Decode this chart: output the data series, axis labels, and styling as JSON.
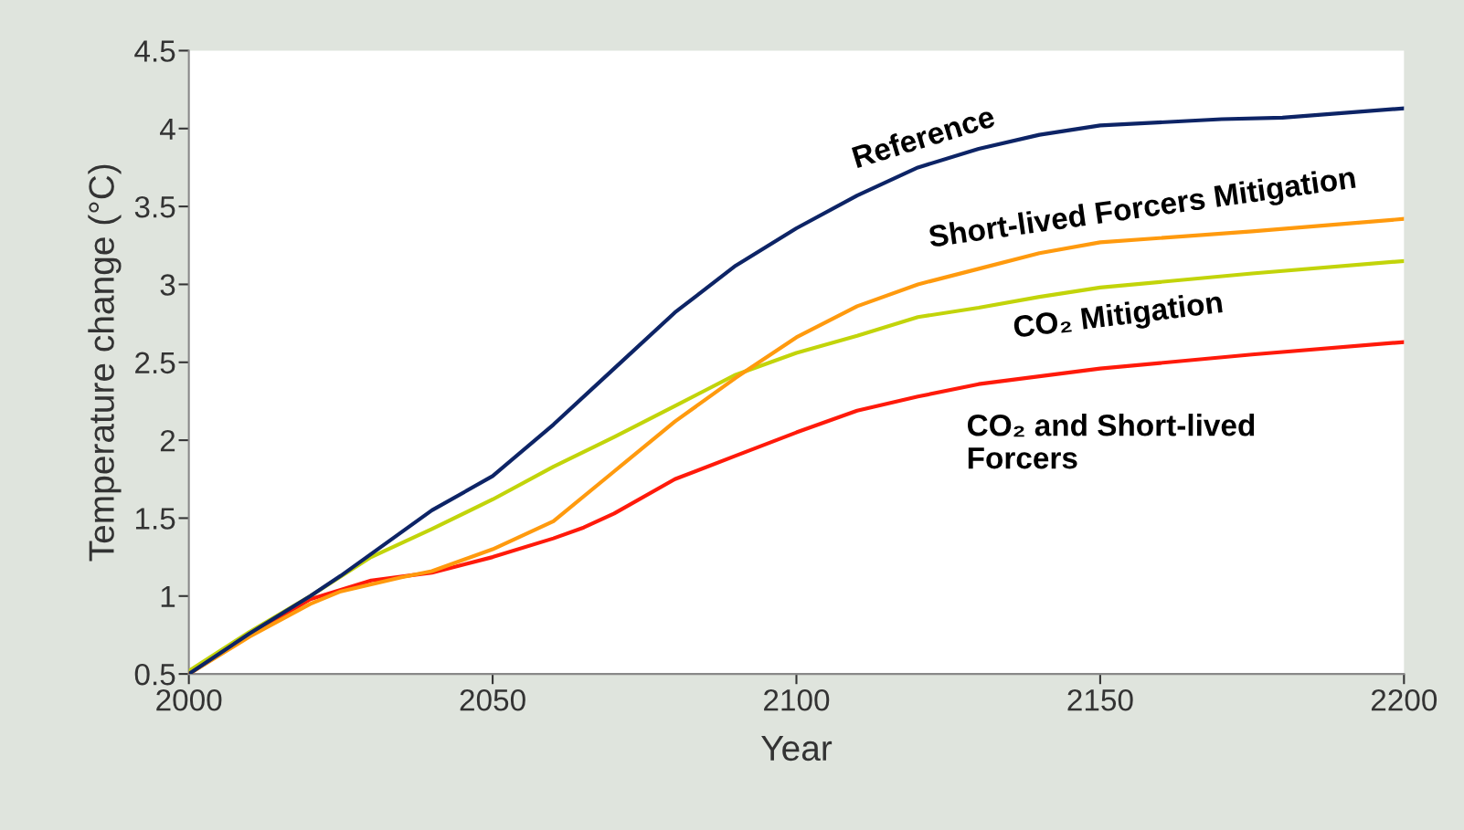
{
  "chart_data": {
    "type": "line",
    "xlabel": "Year",
    "ylabel": "Temperature change (°C)",
    "xlim": [
      2000,
      2200
    ],
    "xticks": [
      2000,
      2050,
      2100,
      2150,
      2200
    ],
    "ylim": [
      0.5,
      4.5
    ],
    "yticks": [
      0.5,
      1,
      1.5,
      2,
      2.5,
      3,
      3.5,
      4,
      4.5
    ],
    "grid": false,
    "legend": false,
    "series": [
      {
        "name": "Reference",
        "color": "#0d2466",
        "x": [
          2000,
          2010,
          2020,
          2025,
          2040,
          2050,
          2060,
          2070,
          2080,
          2090,
          2100,
          2110,
          2120,
          2130,
          2140,
          2150,
          2170,
          2180,
          2200
        ],
        "values": [
          0.5,
          0.76,
          1.0,
          1.13,
          1.55,
          1.77,
          2.1,
          2.46,
          2.82,
          3.12,
          3.36,
          3.57,
          3.75,
          3.87,
          3.96,
          4.02,
          4.06,
          4.07,
          4.13
        ]
      },
      {
        "name": "Short-lived Forcers Mitigation",
        "color": "#ff9a0e",
        "x": [
          2000,
          2010,
          2020,
          2025,
          2035,
          2040,
          2050,
          2060,
          2070,
          2080,
          2090,
          2100,
          2110,
          2120,
          2130,
          2140,
          2150,
          2175,
          2200
        ],
        "values": [
          0.5,
          0.74,
          0.95,
          1.03,
          1.12,
          1.16,
          1.3,
          1.48,
          1.8,
          2.12,
          2.4,
          2.66,
          2.86,
          3.0,
          3.1,
          3.2,
          3.27,
          3.34,
          3.42
        ]
      },
      {
        "name": "CO₂ Mitigation",
        "color": "#c2d40a",
        "x": [
          2000,
          2010,
          2020,
          2030,
          2040,
          2050,
          2060,
          2070,
          2080,
          2085,
          2090,
          2100,
          2110,
          2120,
          2130,
          2140,
          2150,
          2175,
          2200
        ],
        "values": [
          0.52,
          0.77,
          1.0,
          1.25,
          1.43,
          1.62,
          1.83,
          2.02,
          2.22,
          2.32,
          2.42,
          2.56,
          2.67,
          2.79,
          2.85,
          2.92,
          2.98,
          3.07,
          3.15
        ]
      },
      {
        "name": "CO₂ and Short-lived\nForcers",
        "color": "#ff1a0a",
        "x": [
          2000,
          2010,
          2020,
          2030,
          2040,
          2050,
          2060,
          2065,
          2070,
          2080,
          2090,
          2100,
          2110,
          2120,
          2130,
          2150,
          2175,
          2200
        ],
        "values": [
          0.5,
          0.75,
          0.98,
          1.1,
          1.15,
          1.25,
          1.37,
          1.44,
          1.53,
          1.75,
          1.9,
          2.05,
          2.19,
          2.28,
          2.36,
          2.46,
          2.55,
          2.63
        ]
      }
    ]
  }
}
